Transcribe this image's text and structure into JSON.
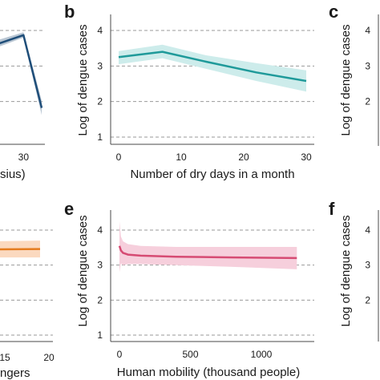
{
  "colors": {
    "temperature": "#1f4e79",
    "temperature_band": "#b9c6d3",
    "dry_days": "#1f9a9a",
    "dry_days_band": "#cdeceb",
    "passengers": "#e57c1f",
    "passengers_band": "#fbd9bf",
    "mobility": "#d64b73",
    "mobility_band": "#f6cfdc",
    "axis": "#4a4a4a",
    "grid": "#9a9a9a"
  },
  "chart_data": [
    {
      "id": "a",
      "type": "line",
      "panel": "",
      "xlabel": "sius)",
      "ylabel": "",
      "xticks": [
        "30"
      ],
      "x": [
        22,
        30,
        34
      ],
      "y": [
        3.52,
        3.87,
        1.82
      ],
      "band_lower": [
        3.42,
        3.8,
        1.62
      ],
      "band_upper": [
        3.64,
        3.95,
        2.02
      ]
    },
    {
      "id": "b",
      "type": "line",
      "panel": "b",
      "xlabel": "Number of dry days in a month",
      "ylabel": "Log of dengue cases",
      "xlim": [
        -1,
        31
      ],
      "ylim": [
        0.9,
        4.5
      ],
      "xticks": [
        "0",
        "10",
        "20",
        "30"
      ],
      "yticks": [
        "1",
        "2",
        "3",
        "4"
      ],
      "grid": "dashed horizontal",
      "x": [
        0,
        7,
        14,
        22,
        30
      ],
      "y": [
        3.25,
        3.4,
        3.12,
        2.82,
        2.58
      ],
      "band_lower": [
        3.05,
        3.22,
        2.92,
        2.58,
        2.28
      ],
      "band_upper": [
        3.42,
        3.6,
        3.3,
        3.08,
        2.88
      ]
    },
    {
      "id": "c",
      "type": "line",
      "panel": "c",
      "xlabel": "",
      "ylabel": "Log of dengue cases",
      "yticks": [
        "2",
        "3",
        "4"
      ]
    },
    {
      "id": "d",
      "type": "line",
      "panel": "",
      "xlabel": "ngers",
      "ylabel": "",
      "xticks": [
        "15",
        "20"
      ],
      "x": [
        10,
        14,
        19
      ],
      "y": [
        3.45,
        3.45,
        3.46
      ],
      "band_lower": [
        3.22,
        3.22,
        3.22
      ],
      "band_upper": [
        3.68,
        3.68,
        3.7
      ]
    },
    {
      "id": "e",
      "type": "line",
      "panel": "e",
      "xlabel": "Human mobility (thousand people)",
      "ylabel": "Log of dengue cases",
      "xlim": [
        -30,
        1300
      ],
      "ylim": [
        0.9,
        4.5
      ],
      "xticks": [
        "0",
        "500",
        "1000"
      ],
      "yticks": [
        "1",
        "2",
        "3",
        "4"
      ],
      "grid": "dashed horizontal",
      "x": [
        0,
        10,
        25,
        60,
        150,
        400,
        800,
        1250
      ],
      "y": [
        3.55,
        3.42,
        3.35,
        3.3,
        3.27,
        3.24,
        3.22,
        3.2
      ],
      "band_lower": [
        2.8,
        3.05,
        3.0,
        3.03,
        3.03,
        3.0,
        2.95,
        2.88
      ],
      "band_upper": [
        4.25,
        3.82,
        3.68,
        3.6,
        3.55,
        3.52,
        3.52,
        3.52
      ]
    },
    {
      "id": "f",
      "type": "line",
      "panel": "f",
      "xlabel": "",
      "ylabel": "Log of dengue cases",
      "yticks": [
        "2",
        "3",
        "4"
      ]
    }
  ]
}
